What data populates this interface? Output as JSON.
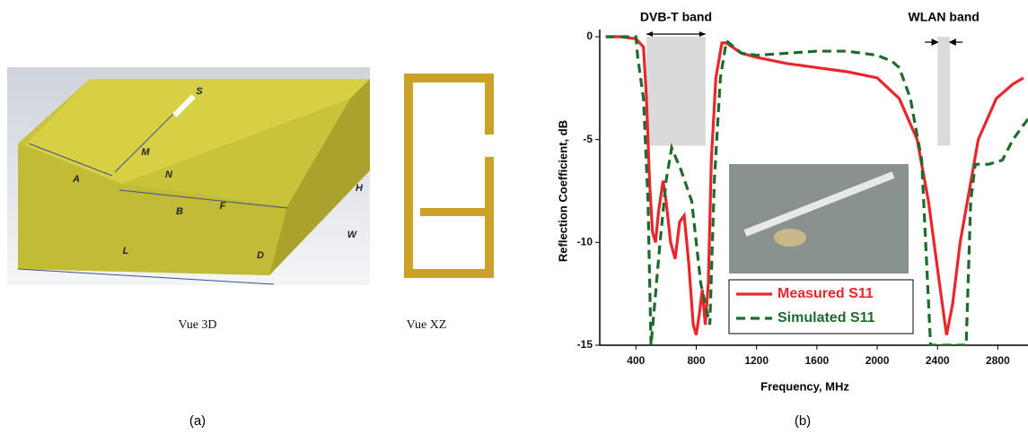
{
  "figure_a": {
    "dimension_labels": [
      "S",
      "M",
      "N",
      "A",
      "H",
      "B",
      "F",
      "L",
      "D",
      "W"
    ],
    "caption_3d": "Vue 3D",
    "caption_xz": "Vue XZ",
    "label": "(a)"
  },
  "chart_data": {
    "type": "line",
    "label": "(b)",
    "x_label": "Frequency, MHz",
    "y_label": "Reflection Coefficient, dB",
    "xlim": [
      160,
      3000
    ],
    "ylim": [
      -15,
      0
    ],
    "xticks": [
      400,
      800,
      1200,
      1600,
      2000,
      2400,
      2800
    ],
    "yticks": [
      -15,
      -10,
      -5,
      0
    ],
    "legend": "lower right",
    "bands": [
      {
        "label": "DVB-T band",
        "range": [
          470,
          862
        ],
        "depth": -5.3,
        "color": "#d9dadb"
      },
      {
        "label": "WLAN band",
        "range": [
          2400,
          2483
        ],
        "depth": -5.3,
        "color": "#d9dadb"
      }
    ],
    "series": [
      {
        "name": "Measured S11",
        "color": "#e8262b",
        "dash": false,
        "x": [
          200,
          300,
          400,
          450,
          470,
          490,
          510,
          530,
          550,
          580,
          600,
          630,
          660,
          690,
          720,
          750,
          780,
          800,
          820,
          840,
          860,
          880,
          900,
          930,
          970,
          1000,
          1100,
          1200,
          1400,
          1600,
          1800,
          2000,
          2146,
          2265,
          2340,
          2413,
          2460,
          2500,
          2550,
          2670,
          2790,
          2900,
          2970
        ],
        "values": [
          0,
          0,
          -0.1,
          -0.5,
          -3,
          -7,
          -9.5,
          -10,
          -8.5,
          -7,
          -8,
          -10,
          -10.8,
          -9,
          -8.7,
          -11,
          -14,
          -14.5,
          -13.5,
          -12.3,
          -14,
          -12,
          -6,
          -2,
          -0.3,
          -0.3,
          -0.8,
          -1,
          -1.3,
          -1.5,
          -1.7,
          -2,
          -3,
          -5,
          -8,
          -12,
          -14.5,
          -13,
          -10,
          -5,
          -3,
          -2.3,
          -2
        ]
      },
      {
        "name": "Simulated S11",
        "color": "#1e6b2d",
        "dash": true,
        "x": [
          200,
          400,
          412,
          450,
          480,
          500,
          560,
          600,
          637,
          700,
          770,
          830,
          890,
          920,
          960,
          1000,
          1100,
          1200,
          1400,
          1600,
          1800,
          2000,
          2100,
          2146,
          2220,
          2295,
          2354,
          2590,
          2620,
          2650,
          2740,
          2830,
          2900,
          3000
        ],
        "values": [
          0,
          0,
          -1,
          -3,
          -8,
          -15,
          -10,
          -7,
          -5.4,
          -6.5,
          -8,
          -12,
          -14,
          -7,
          -2,
          -0.2,
          -0.8,
          -0.9,
          -0.8,
          -0.7,
          -0.7,
          -0.9,
          -1.2,
          -1.5,
          -3,
          -6,
          -15,
          -15,
          -8,
          -6.2,
          -6.2,
          -6,
          -5,
          -4
        ]
      }
    ]
  }
}
